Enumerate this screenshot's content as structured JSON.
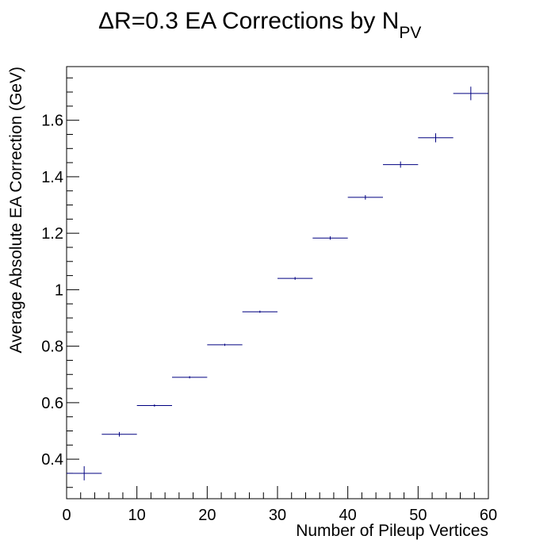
{
  "chart_data": {
    "type": "scatter",
    "title": "ΔR=0.3 EA Corrections by N",
    "title_subscript": "PV",
    "xlabel": "Number of Pileup Vertices",
    "ylabel": "Average Absolute EA Correction (GeV)",
    "xlim": [
      0,
      60
    ],
    "ylim": [
      0.26,
      1.79
    ],
    "x_ticks": [
      0,
      10,
      20,
      30,
      40,
      50,
      60
    ],
    "x_tick_labels": [
      "0",
      "10",
      "20",
      "30",
      "40",
      "50",
      "60"
    ],
    "y_ticks": [
      0.4,
      0.6,
      0.8,
      1.0,
      1.2,
      1.4,
      1.6
    ],
    "y_tick_labels": [
      "0.4",
      "0.6",
      "0.8",
      "1",
      "1.2",
      "1.4",
      "1.6"
    ],
    "grid": false,
    "series": [
      {
        "color": "#000080",
        "points": [
          {
            "x": 2.5,
            "xerr": 2.5,
            "y": 0.35,
            "yerr": 0.025
          },
          {
            "x": 7.5,
            "xerr": 2.5,
            "y": 0.488,
            "yerr": 0.008
          },
          {
            "x": 12.5,
            "xerr": 2.5,
            "y": 0.59,
            "yerr": 0.004
          },
          {
            "x": 17.5,
            "xerr": 2.5,
            "y": 0.69,
            "yerr": 0.004
          },
          {
            "x": 22.5,
            "xerr": 2.5,
            "y": 0.805,
            "yerr": 0.004
          },
          {
            "x": 27.5,
            "xerr": 2.5,
            "y": 0.922,
            "yerr": 0.004
          },
          {
            "x": 32.5,
            "xerr": 2.5,
            "y": 1.04,
            "yerr": 0.005
          },
          {
            "x": 37.5,
            "xerr": 2.5,
            "y": 1.183,
            "yerr": 0.006
          },
          {
            "x": 42.5,
            "xerr": 2.5,
            "y": 1.327,
            "yerr": 0.008
          },
          {
            "x": 47.5,
            "xerr": 2.5,
            "y": 1.443,
            "yerr": 0.011
          },
          {
            "x": 52.5,
            "xerr": 2.5,
            "y": 1.538,
            "yerr": 0.016
          },
          {
            "x": 57.5,
            "xerr": 2.5,
            "y": 1.695,
            "yerr": 0.024
          }
        ]
      }
    ]
  }
}
